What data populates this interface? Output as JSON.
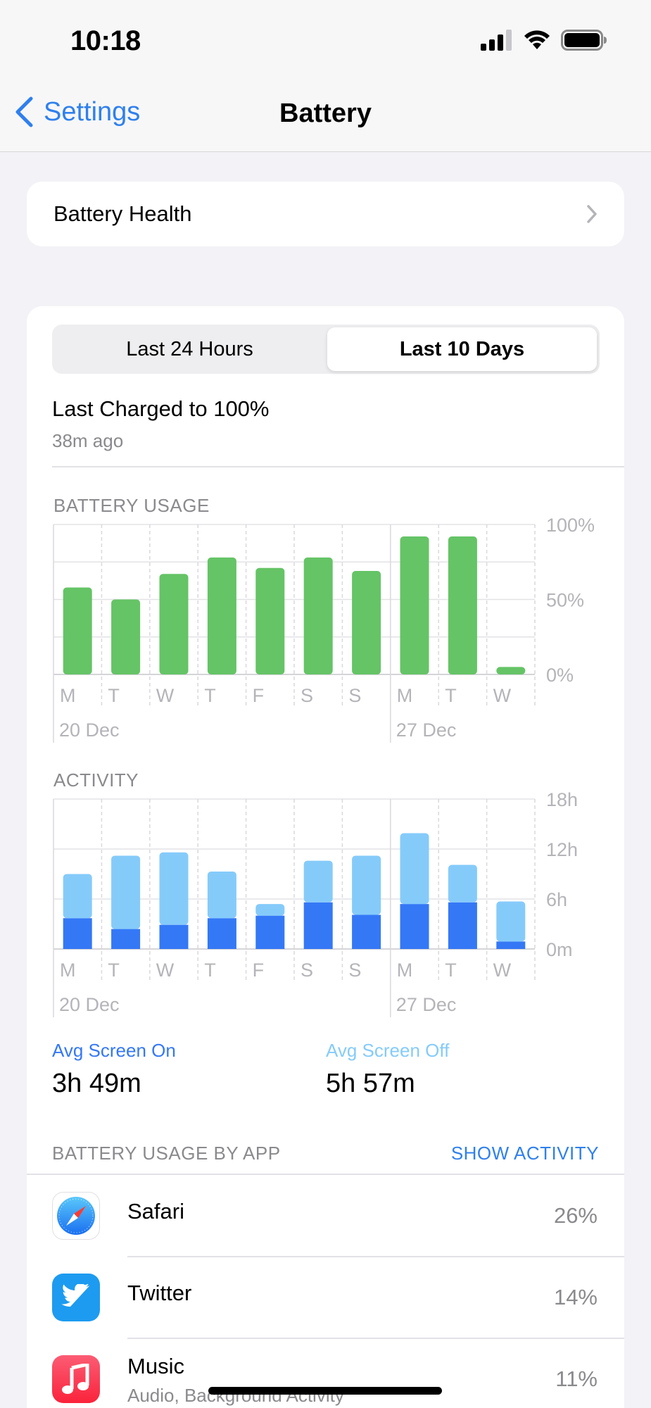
{
  "status": {
    "time": "10:18"
  },
  "nav": {
    "back_label": "Settings",
    "title": "Battery"
  },
  "battery_health": {
    "label": "Battery Health"
  },
  "segments": {
    "left": "Last 24 Hours",
    "right": "Last 10 Days",
    "selected": "Last 10 Days"
  },
  "last_charged": {
    "title": "Last Charged to 100%",
    "subtitle": "38m ago"
  },
  "usage": {
    "heading": "BATTERY USAGE",
    "y_ticks": [
      "100%",
      "50%",
      "0%"
    ],
    "days": [
      "M",
      "T",
      "W",
      "T",
      "F",
      "S",
      "S",
      "M",
      "T",
      "W"
    ],
    "dates": [
      "20 Dec",
      "27 Dec"
    ]
  },
  "activity": {
    "heading": "ACTIVITY",
    "y_ticks": [
      "18h",
      "12h",
      "6h",
      "0m"
    ],
    "days": [
      "M",
      "T",
      "W",
      "T",
      "F",
      "S",
      "S",
      "M",
      "T",
      "W"
    ],
    "dates": [
      "20 Dec",
      "27 Dec"
    ]
  },
  "averages": {
    "screen_on_label": "Avg Screen On",
    "screen_on_value": "3h 49m",
    "screen_off_label": "Avg Screen Off",
    "screen_off_value": "5h 57m"
  },
  "by_app": {
    "heading": "BATTERY USAGE BY APP",
    "toggle": "SHOW ACTIVITY",
    "apps": [
      {
        "name": "Safari",
        "subtitle": "",
        "percent": "26%",
        "icon": "safari-icon"
      },
      {
        "name": "Twitter",
        "subtitle": "",
        "percent": "14%",
        "icon": "twitter-icon"
      },
      {
        "name": "Music",
        "subtitle": "Audio, Background Activity",
        "percent": "11%",
        "icon": "music-icon"
      }
    ]
  },
  "colors": {
    "accent": "#2f80ed",
    "usage_green": "#65c466",
    "screen_on": "#3478f6",
    "screen_off": "#85cbfa"
  },
  "chart_data": [
    {
      "type": "bar",
      "title": "BATTERY USAGE",
      "categories": [
        "M",
        "T",
        "W",
        "T",
        "F",
        "S",
        "S",
        "M",
        "T",
        "W"
      ],
      "values": [
        58,
        50,
        67,
        78,
        71,
        78,
        69,
        92,
        92,
        5
      ],
      "ylim": [
        0,
        100
      ],
      "y_ticks": [
        "100%",
        "50%",
        "0%"
      ]
    },
    {
      "type": "bar",
      "title": "ACTIVITY",
      "categories": [
        "M",
        "T",
        "W",
        "T",
        "F",
        "S",
        "S",
        "M",
        "T",
        "W"
      ],
      "series": [
        {
          "name": "Avg Screen On",
          "values": [
            3.7,
            2.4,
            2.9,
            3.7,
            4.0,
            5.6,
            4.1,
            5.4,
            5.6,
            0.9
          ]
        },
        {
          "name": "Avg Screen Off",
          "values": [
            5.3,
            8.8,
            8.7,
            5.6,
            1.4,
            5.0,
            7.1,
            8.5,
            4.5,
            4.8
          ]
        }
      ],
      "ylim": [
        0,
        18
      ],
      "y_ticks": [
        "18h",
        "12h",
        "6h",
        "0m"
      ]
    }
  ]
}
